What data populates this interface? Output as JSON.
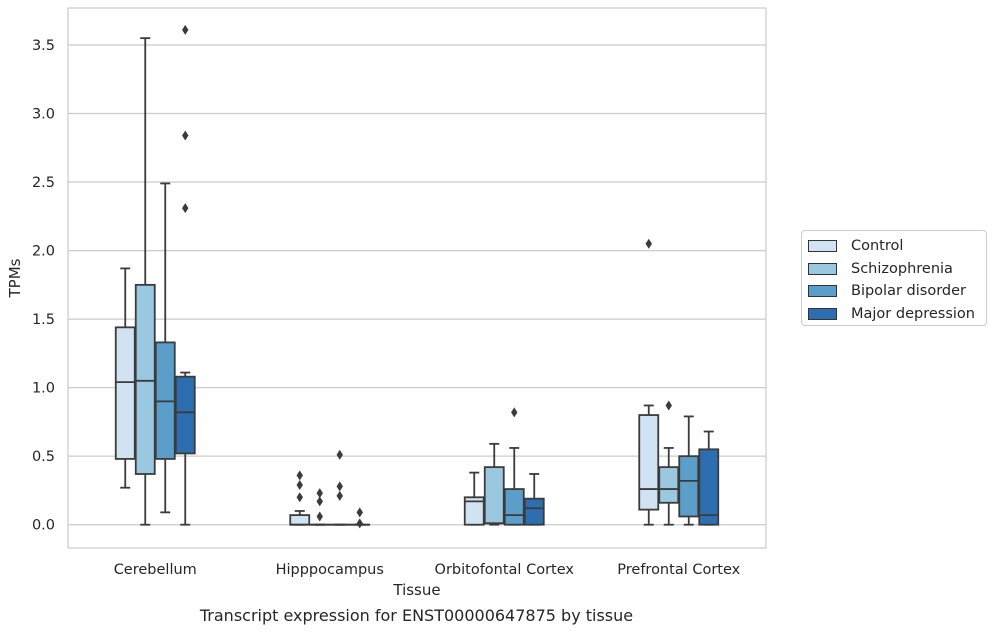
{
  "chart_data": {
    "type": "box",
    "xlabel": "Tissue",
    "ylabel": "TPMs",
    "ylim": [
      -0.17,
      3.77
    ],
    "yticks": [
      "0.0",
      "0.5",
      "1.0",
      "1.5",
      "2.0",
      "2.5",
      "3.0",
      "3.5"
    ],
    "categories": [
      "Cerebellum",
      "Hipppocampus",
      "Orbitofontal Cortex",
      "Prefrontal Cortex"
    ],
    "grid": "horizontal",
    "legend_position": "right",
    "series": [
      {
        "name": "Control",
        "color": "#d1e2f2",
        "boxes": [
          {
            "min": 0.27,
            "q1": 0.48,
            "median": 1.04,
            "q3": 1.44,
            "max": 1.87,
            "outliers": []
          },
          {
            "min": 0.0,
            "q1": 0.0,
            "median": 0.0,
            "q3": 0.07,
            "max": 0.1,
            "outliers": [
              0.2,
              0.29,
              0.36
            ]
          },
          {
            "min": 0.0,
            "q1": 0.0,
            "median": 0.17,
            "q3": 0.2,
            "max": 0.38,
            "outliers": []
          },
          {
            "min": 0.0,
            "q1": 0.11,
            "median": 0.26,
            "q3": 0.8,
            "max": 0.87,
            "outliers": [
              2.05
            ]
          }
        ]
      },
      {
        "name": "Schizophrenia",
        "color": "#9ac8e0",
        "boxes": [
          {
            "min": 0.0,
            "q1": 0.37,
            "median": 1.05,
            "q3": 1.75,
            "max": 3.55,
            "outliers": []
          },
          {
            "min": 0.0,
            "q1": 0.0,
            "median": 0.0,
            "q3": 0.0,
            "max": 0.0,
            "outliers": [
              0.06,
              0.17,
              0.23
            ]
          },
          {
            "min": 0.0,
            "q1": 0.01,
            "median": 0.01,
            "q3": 0.42,
            "max": 0.59,
            "outliers": []
          },
          {
            "min": 0.0,
            "q1": 0.16,
            "median": 0.26,
            "q3": 0.42,
            "max": 0.56,
            "outliers": [
              0.87
            ]
          }
        ]
      },
      {
        "name": "Bipolar disorder",
        "color": "#5a9ec9",
        "boxes": [
          {
            "min": 0.09,
            "q1": 0.48,
            "median": 0.9,
            "q3": 1.33,
            "max": 2.49,
            "outliers": []
          },
          {
            "min": 0.0,
            "q1": 0.0,
            "median": 0.0,
            "q3": 0.0,
            "max": 0.0,
            "outliers": [
              0.21,
              0.28,
              0.51
            ]
          },
          {
            "min": 0.0,
            "q1": 0.0,
            "median": 0.07,
            "q3": 0.26,
            "max": 0.56,
            "outliers": [
              0.82
            ]
          },
          {
            "min": 0.0,
            "q1": 0.06,
            "median": 0.32,
            "q3": 0.5,
            "max": 0.79,
            "outliers": []
          }
        ]
      },
      {
        "name": "Major depression",
        "color": "#2c6eaf",
        "boxes": [
          {
            "min": 0.0,
            "q1": 0.52,
            "median": 0.82,
            "q3": 1.08,
            "max": 1.11,
            "outliers": [
              2.31,
              2.84,
              3.61
            ]
          },
          {
            "min": 0.0,
            "q1": 0.0,
            "median": 0.0,
            "q3": 0.0,
            "max": 0.0,
            "outliers": [
              0.01,
              0.09
            ]
          },
          {
            "min": 0.0,
            "q1": 0.0,
            "median": 0.12,
            "q3": 0.19,
            "max": 0.37,
            "outliers": []
          },
          {
            "min": 0.0,
            "q1": 0.0,
            "median": 0.07,
            "q3": 0.55,
            "max": 0.68,
            "outliers": []
          }
        ]
      }
    ]
  },
  "caption": "Transcript expression for ENST00000647875 by tissue"
}
